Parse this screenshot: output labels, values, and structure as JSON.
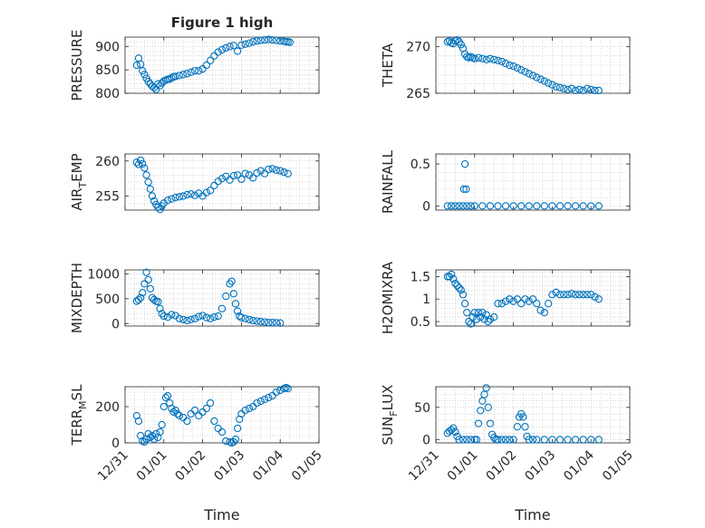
{
  "figure_title": "Figure 1 high",
  "x_label": "Time",
  "x_ticks": [
    "12/31",
    "01/01",
    "01/02",
    "01/03",
    "01/04",
    "01/05"
  ],
  "marker_color": "#0072BD",
  "chart_data": [
    {
      "type": "scatter",
      "ylabel": "PRESSURE",
      "ylim": [
        800,
        920
      ],
      "yticks": [
        800,
        850,
        900
      ],
      "ytick_labels": [
        "800",
        "850",
        "900"
      ],
      "x": [
        0.3,
        0.35,
        0.4,
        0.45,
        0.5,
        0.55,
        0.6,
        0.65,
        0.7,
        0.75,
        0.8,
        0.85,
        0.9,
        0.95,
        1.0,
        1.05,
        1.1,
        1.15,
        1.2,
        1.25,
        1.3,
        1.4,
        1.5,
        1.6,
        1.7,
        1.8,
        1.9,
        2.0,
        2.1,
        2.2,
        2.3,
        2.4,
        2.5,
        2.6,
        2.7,
        2.8,
        2.9,
        3.0,
        3.1,
        3.2,
        3.3,
        3.4,
        3.5,
        3.6,
        3.7,
        3.8,
        3.9,
        4.0,
        4.1,
        4.15,
        4.2,
        4.25
      ],
      "y": [
        860,
        875,
        862,
        848,
        840,
        832,
        825,
        820,
        815,
        812,
        808,
        820,
        816,
        822,
        826,
        828,
        830,
        830,
        833,
        835,
        836,
        838,
        840,
        842,
        845,
        848,
        848,
        852,
        860,
        870,
        880,
        888,
        893,
        897,
        900,
        902,
        890,
        903,
        905,
        907,
        910,
        912,
        913,
        914,
        915,
        914,
        913,
        912,
        911,
        910,
        910,
        909
      ]
    },
    {
      "type": "scatter",
      "ylabel": "THETA",
      "ylim": [
        265,
        271
      ],
      "yticks": [
        265,
        270
      ],
      "ytick_labels": [
        "265",
        "270"
      ],
      "x": [
        0.3,
        0.35,
        0.4,
        0.45,
        0.5,
        0.55,
        0.6,
        0.65,
        0.7,
        0.75,
        0.8,
        0.85,
        0.9,
        0.95,
        1.0,
        1.1,
        1.2,
        1.3,
        1.4,
        1.5,
        1.6,
        1.7,
        1.8,
        1.9,
        2.0,
        2.1,
        2.2,
        2.3,
        2.4,
        2.5,
        2.6,
        2.7,
        2.8,
        2.9,
        3.0,
        3.1,
        3.2,
        3.3,
        3.4,
        3.5,
        3.6,
        3.7,
        3.8,
        3.9,
        4.0,
        4.1,
        4.2
      ],
      "y": [
        270.5,
        270.6,
        270.4,
        270.3,
        270.6,
        270.7,
        270.5,
        270.2,
        269.8,
        269.2,
        268.9,
        268.8,
        268.9,
        268.8,
        268.7,
        268.8,
        268.7,
        268.6,
        268.7,
        268.6,
        268.5,
        268.4,
        268.2,
        268.0,
        267.9,
        267.7,
        267.5,
        267.3,
        267.1,
        266.9,
        266.7,
        266.5,
        266.3,
        266.1,
        265.9,
        265.7,
        265.6,
        265.5,
        265.4,
        265.5,
        265.3,
        265.4,
        265.3,
        265.5,
        265.4,
        265.3,
        265.3
      ]
    },
    {
      "type": "scatter",
      "ylabel": "AIR_TEMP",
      "ylim": [
        253,
        261
      ],
      "yticks": [
        255,
        260
      ],
      "ytick_labels": [
        "255",
        "260"
      ],
      "x": [
        0.3,
        0.35,
        0.4,
        0.45,
        0.5,
        0.55,
        0.6,
        0.65,
        0.7,
        0.75,
        0.8,
        0.85,
        0.9,
        0.95,
        1.0,
        1.1,
        1.2,
        1.3,
        1.4,
        1.5,
        1.6,
        1.7,
        1.8,
        1.9,
        2.0,
        2.1,
        2.2,
        2.3,
        2.4,
        2.5,
        2.6,
        2.7,
        2.8,
        2.9,
        3.0,
        3.1,
        3.2,
        3.3,
        3.4,
        3.5,
        3.6,
        3.7,
        3.8,
        3.9,
        4.0,
        4.1,
        4.2
      ],
      "y": [
        259.8,
        259.5,
        260.1,
        259.6,
        259.0,
        258.0,
        257.0,
        256.0,
        255.0,
        254.3,
        253.8,
        253.4,
        253.1,
        253.6,
        254.0,
        254.4,
        254.6,
        254.8,
        254.9,
        255.0,
        255.2,
        255.3,
        255.1,
        255.4,
        255.0,
        255.5,
        255.8,
        256.5,
        257.1,
        257.5,
        257.8,
        257.3,
        257.9,
        258.0,
        257.4,
        258.2,
        258.0,
        257.6,
        258.3,
        258.6,
        258.2,
        258.8,
        258.9,
        258.7,
        258.6,
        258.4,
        258.2
      ]
    },
    {
      "type": "scatter",
      "ylabel": "RAINFALL",
      "ylim": [
        -0.05,
        0.62
      ],
      "yticks": [
        0,
        0.5
      ],
      "ytick_labels": [
        "0",
        "0.5"
      ],
      "x": [
        0.3,
        0.4,
        0.5,
        0.6,
        0.7,
        0.72,
        0.75,
        0.78,
        0.8,
        0.9,
        1.0,
        1.2,
        1.4,
        1.6,
        1.8,
        2.0,
        2.2,
        2.4,
        2.6,
        2.8,
        3.0,
        3.2,
        3.4,
        3.6,
        3.8,
        4.0,
        4.2
      ],
      "y": [
        0,
        0,
        0,
        0,
        0,
        0.2,
        0.5,
        0.2,
        0,
        0,
        0,
        0,
        0,
        0,
        0,
        0,
        0,
        0,
        0,
        0,
        0,
        0,
        0,
        0,
        0,
        0,
        0
      ]
    },
    {
      "type": "scatter",
      "ylabel": "MIXDEPTH",
      "ylim": [
        -50,
        1080
      ],
      "yticks": [
        0,
        500,
        1000
      ],
      "ytick_labels": [
        "0",
        "500",
        "1000"
      ],
      "x": [
        0.3,
        0.35,
        0.4,
        0.45,
        0.5,
        0.55,
        0.6,
        0.65,
        0.7,
        0.75,
        0.8,
        0.85,
        0.9,
        0.95,
        1.0,
        1.1,
        1.2,
        1.3,
        1.4,
        1.5,
        1.6,
        1.7,
        1.8,
        1.9,
        2.0,
        2.1,
        2.2,
        2.3,
        2.4,
        2.5,
        2.6,
        2.7,
        2.75,
        2.8,
        2.85,
        2.9,
        2.95,
        3.0,
        3.1,
        3.2,
        3.3,
        3.4,
        3.5,
        3.6,
        3.7,
        3.8,
        3.9,
        4.0
      ],
      "y": [
        450,
        480,
        520,
        620,
        800,
        1030,
        880,
        700,
        520,
        480,
        450,
        440,
        300,
        200,
        150,
        130,
        180,
        160,
        100,
        80,
        60,
        80,
        100,
        140,
        160,
        120,
        100,
        130,
        150,
        300,
        550,
        800,
        850,
        600,
        400,
        250,
        150,
        120,
        100,
        80,
        60,
        50,
        40,
        30,
        20,
        20,
        15,
        10
      ]
    },
    {
      "type": "scatter",
      "ylabel": "H2OMIXRA",
      "ylim": [
        0.4,
        1.65
      ],
      "yticks": [
        0.5,
        1,
        1.5
      ],
      "ytick_labels": [
        "0.5",
        "1",
        "1.5"
      ],
      "x": [
        0.3,
        0.35,
        0.4,
        0.45,
        0.5,
        0.55,
        0.6,
        0.65,
        0.7,
        0.75,
        0.8,
        0.85,
        0.9,
        0.95,
        1.0,
        1.05,
        1.1,
        1.15,
        1.2,
        1.25,
        1.3,
        1.35,
        1.4,
        1.5,
        1.6,
        1.7,
        1.8,
        1.9,
        2.0,
        2.1,
        2.2,
        2.3,
        2.4,
        2.5,
        2.6,
        2.7,
        2.8,
        2.9,
        3.0,
        3.1,
        3.2,
        3.3,
        3.4,
        3.5,
        3.6,
        3.7,
        3.8,
        3.9,
        4.0,
        4.1,
        4.2
      ],
      "y": [
        1.5,
        1.5,
        1.55,
        1.45,
        1.35,
        1.3,
        1.25,
        1.2,
        1.1,
        0.9,
        0.7,
        0.5,
        0.45,
        0.6,
        0.7,
        0.55,
        0.7,
        0.6,
        0.7,
        0.55,
        0.65,
        0.5,
        0.55,
        0.6,
        0.9,
        0.9,
        0.95,
        1.0,
        0.95,
        1.0,
        0.9,
        1.0,
        0.95,
        1.0,
        0.9,
        0.75,
        0.7,
        0.9,
        1.1,
        1.15,
        1.1,
        1.1,
        1.1,
        1.12,
        1.1,
        1.1,
        1.1,
        1.1,
        1.1,
        1.05,
        1.0
      ]
    },
    {
      "type": "scatter",
      "ylabel": "TERR_MSL",
      "ylim": [
        0,
        310
      ],
      "yticks": [
        0,
        200
      ],
      "ytick_labels": [
        "0",
        "200"
      ],
      "x": [
        0.3,
        0.35,
        0.4,
        0.45,
        0.5,
        0.55,
        0.6,
        0.65,
        0.7,
        0.75,
        0.8,
        0.85,
        0.9,
        0.95,
        1.0,
        1.05,
        1.1,
        1.15,
        1.2,
        1.25,
        1.3,
        1.35,
        1.4,
        1.5,
        1.6,
        1.7,
        1.8,
        1.9,
        2.0,
        2.1,
        2.2,
        2.3,
        2.4,
        2.5,
        2.6,
        2.7,
        2.75,
        2.8,
        2.85,
        2.9,
        2.95,
        3.0,
        3.1,
        3.2,
        3.3,
        3.4,
        3.5,
        3.6,
        3.7,
        3.8,
        3.9,
        4.0,
        4.1,
        4.15,
        4.2
      ],
      "y": [
        150,
        120,
        40,
        10,
        5,
        20,
        50,
        30,
        40,
        20,
        50,
        30,
        60,
        100,
        200,
        250,
        260,
        220,
        190,
        170,
        180,
        160,
        150,
        140,
        120,
        160,
        180,
        150,
        170,
        190,
        220,
        120,
        80,
        60,
        10,
        5,
        0,
        5,
        20,
        80,
        130,
        160,
        180,
        190,
        200,
        220,
        230,
        240,
        250,
        260,
        280,
        290,
        300,
        305,
        300
      ]
    },
    {
      "type": "scatter",
      "ylabel": "SUN_FLUX",
      "ylim": [
        -5,
        82
      ],
      "yticks": [
        0,
        50
      ],
      "ytick_labels": [
        "0",
        "50"
      ],
      "x": [
        0.3,
        0.35,
        0.4,
        0.45,
        0.5,
        0.55,
        0.6,
        0.7,
        0.8,
        0.9,
        1.0,
        1.05,
        1.1,
        1.15,
        1.2,
        1.25,
        1.3,
        1.35,
        1.4,
        1.45,
        1.5,
        1.55,
        1.6,
        1.7,
        1.8,
        1.9,
        2.0,
        2.1,
        2.15,
        2.2,
        2.25,
        2.3,
        2.35,
        2.4,
        2.5,
        2.6,
        2.8,
        3.0,
        3.2,
        3.4,
        3.6,
        3.8,
        4.0,
        4.2
      ],
      "y": [
        10,
        13,
        15,
        18,
        12,
        5,
        0,
        0,
        0,
        0,
        0,
        0,
        25,
        45,
        60,
        70,
        80,
        50,
        25,
        8,
        3,
        0,
        0,
        0,
        0,
        0,
        0,
        20,
        35,
        40,
        35,
        20,
        5,
        0,
        0,
        0,
        0,
        0,
        0,
        0,
        0,
        0,
        0,
        0
      ]
    }
  ]
}
